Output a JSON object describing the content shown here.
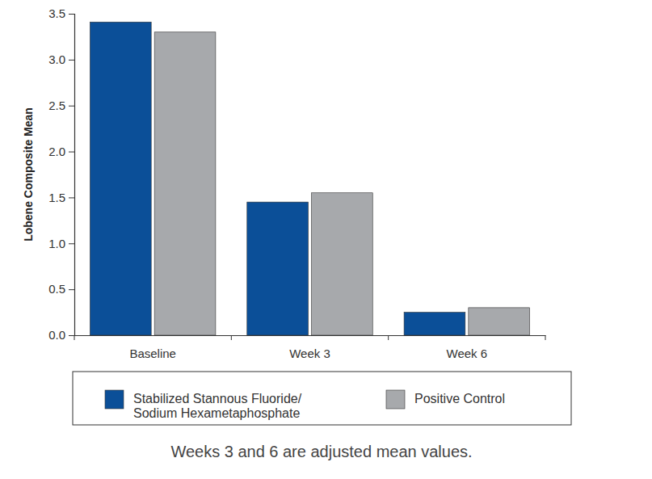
{
  "chart_data": {
    "type": "bar",
    "y_label": "Lobene Composite Mean",
    "categories": [
      "Baseline",
      "Week 3",
      "Week 6"
    ],
    "series": [
      {
        "name": "Stabilized Stannous Fluoride/\nSodium Hexametaphosphate",
        "color": "#0b4f98",
        "values": [
          3.41,
          1.45,
          0.25
        ]
      },
      {
        "name": "Positive Control",
        "color": "#a7a9ac",
        "values": [
          3.3,
          1.55,
          0.3
        ]
      }
    ],
    "ylim": [
      0,
      3.5
    ],
    "yticks": [
      {
        "value": 0,
        "label": "0.0"
      },
      0.5,
      {
        "value": 1,
        "label": "1.0"
      },
      1.5,
      {
        "value": 2,
        "label": "2.0"
      },
      2.5,
      {
        "value": 3,
        "label": "3.0"
      },
      3.5
    ],
    "grid": false,
    "legend": "bottom",
    "annotations": [
      "Weeks 3 and 6 are adjusted mean values."
    ]
  }
}
